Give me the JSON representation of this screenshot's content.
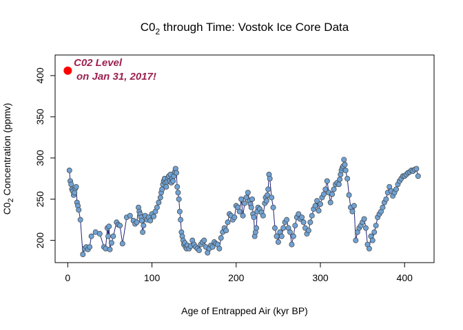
{
  "colors": {
    "line": "#1f1f7a",
    "point_fill": "#6fa3d6",
    "point_stroke": "#4a4a4a",
    "current_point": "#ff0000",
    "annotation": "#9c2150"
  },
  "chart_data": {
    "type": "line",
    "title_main": "C0",
    "title_sub": "2",
    "title_rest": " through Time: Vostok Ice Core Data",
    "xlabel": "Age of Entrapped Air (kyr BP)",
    "ylabel_main": "C0",
    "ylabel_sub": "2",
    "ylabel_rest": " Concentration (ppmv)",
    "xlim": [
      -15,
      435
    ],
    "ylim": [
      173,
      425
    ],
    "xticks": [
      0,
      100,
      200,
      300,
      400
    ],
    "yticks": [
      200,
      250,
      300,
      350,
      400
    ],
    "grid": false,
    "series": [
      {
        "x": [
          2,
          3,
          4,
          5,
          6,
          7,
          8,
          9,
          10,
          11,
          12,
          13,
          15,
          18,
          20,
          22,
          24,
          26,
          28,
          33,
          38,
          43,
          45,
          47,
          48,
          49,
          50,
          52,
          54,
          58,
          60,
          62,
          65,
          70,
          74,
          78,
          80,
          82,
          84,
          85,
          86,
          87,
          88,
          89,
          90,
          92,
          94,
          96,
          98,
          100,
          102,
          104,
          106,
          108,
          110,
          111,
          112,
          113,
          114,
          115,
          116,
          117,
          118,
          119,
          120,
          121,
          122,
          123,
          124,
          125,
          126,
          127,
          128,
          129,
          130,
          131,
          132,
          133,
          134,
          135,
          136,
          137,
          138,
          139,
          140,
          141,
          142,
          144,
          146,
          148,
          150,
          152,
          154,
          156,
          158,
          160,
          162,
          164,
          166,
          168,
          170,
          172,
          174,
          176,
          178,
          180,
          182,
          184,
          186,
          188,
          190,
          192,
          194,
          196,
          198,
          200,
          202,
          204,
          206,
          208,
          210,
          212,
          214,
          216,
          217,
          218,
          219,
          220,
          221,
          222,
          223,
          224,
          225,
          226,
          228,
          230,
          232,
          234,
          235,
          236,
          237,
          238,
          239,
          240,
          242,
          244,
          246,
          248,
          250,
          252,
          254,
          256,
          258,
          260,
          262,
          264,
          266,
          268,
          270,
          272,
          274,
          276,
          278,
          280,
          282,
          284,
          286,
          288,
          290,
          292,
          294,
          296,
          298,
          300,
          302,
          304,
          306,
          308,
          310,
          312,
          314,
          316,
          318,
          320,
          322,
          323,
          324,
          325,
          326,
          327,
          328,
          329,
          330,
          332,
          334,
          336,
          338,
          340,
          342,
          344,
          346,
          348,
          350,
          352,
          354,
          356,
          358,
          360,
          362,
          364,
          366,
          368,
          370,
          372,
          374,
          376,
          378,
          380,
          382,
          384,
          386,
          388,
          390,
          392,
          394,
          396,
          398,
          400,
          402,
          404,
          406,
          408,
          410,
          412,
          414,
          416
        ],
        "y": [
          285,
          272,
          268,
          262,
          260,
          255,
          258,
          263,
          265,
          246,
          242,
          237,
          225,
          183,
          190,
          192,
          189,
          192,
          205,
          210,
          208,
          192,
          190,
          215,
          205,
          217,
          189,
          197,
          205,
          222,
          219,
          218,
          196,
          228,
          230,
          224,
          220,
          222,
          240,
          235,
          232,
          228,
          224,
          210,
          218,
          230,
          225,
          228,
          224,
          232,
          229,
          235,
          240,
          246,
          252,
          258,
          262,
          268,
          272,
          275,
          270,
          265,
          271,
          276,
          278,
          272,
          280,
          270,
          275,
          272,
          278,
          283,
          287,
          282,
          265,
          258,
          250,
          235,
          225,
          210,
          205,
          200,
          195,
          197,
          192,
          190,
          194,
          190,
          193,
          200,
          195,
          192,
          190,
          188,
          195,
          198,
          200,
          192,
          185,
          190,
          194,
          192,
          198,
          196,
          195,
          190,
          203,
          210,
          215,
          212,
          222,
          232,
          230,
          225,
          228,
          242,
          240,
          235,
          250,
          230,
          245,
          252,
          258,
          248,
          244,
          240,
          250,
          232,
          228,
          205,
          210,
          215,
          235,
          240,
          238,
          234,
          230,
          245,
          252,
          248,
          255,
          262,
          280,
          275,
          252,
          240,
          215,
          205,
          198,
          210,
          205,
          215,
          222,
          225,
          215,
          210,
          195,
          205,
          218,
          228,
          232,
          226,
          228,
          222,
          215,
          208,
          212,
          222,
          230,
          238,
          242,
          248,
          236,
          244,
          252,
          256,
          262,
          272,
          258,
          246,
          256,
          262,
          268,
          270,
          268,
          274,
          280,
          285,
          288,
          290,
          298,
          292,
          285,
          275,
          255,
          240,
          235,
          242,
          200,
          210,
          215,
          218,
          222,
          226,
          215,
          195,
          190,
          205,
          200,
          210,
          218,
          228,
          232,
          235,
          240,
          246,
          250,
          258,
          265,
          260,
          254,
          258,
          262,
          268,
          272,
          275,
          278,
          278,
          280,
          282,
          283,
          285,
          284,
          286,
          287,
          278
        ]
      },
      {
        "name": "current",
        "x": [
          0
        ],
        "y": [
          406
        ]
      }
    ],
    "annotation_line1": "C02 Level",
    "annotation_line2": "on Jan 31, 2017!",
    "legend": "none"
  }
}
